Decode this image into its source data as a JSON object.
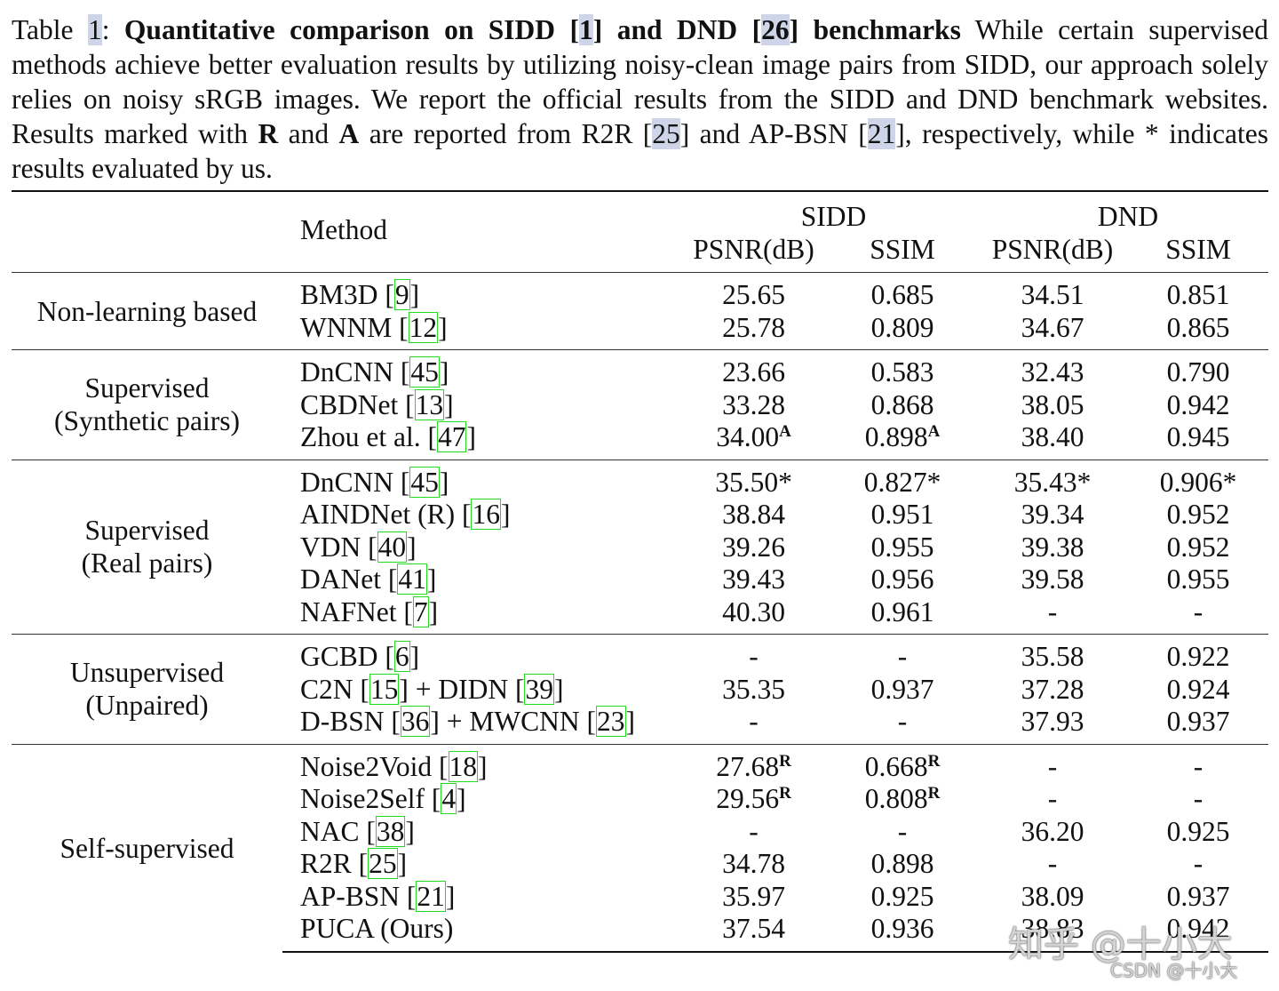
{
  "caption": [
    {
      "text": "Table "
    },
    {
      "ref": "1"
    },
    {
      "text": ": "
    },
    {
      "text": "Quantitative comparison on SIDD [",
      "bold": true
    },
    {
      "ref": "1",
      "bold": true
    },
    {
      "text": "] and DND [",
      "bold": true
    },
    {
      "ref": "26",
      "bold": true
    },
    {
      "text": "] benchmarks",
      "bold": true
    },
    {
      "text": " While certain supervised methods achieve better evaluation results by utilizing noisy-clean image pairs from SIDD, our approach solely relies on noisy sRGB images. We report the official results from the SIDD and DND benchmark websites. Results marked with "
    },
    {
      "text": "R",
      "bold": true
    },
    {
      "text": " and "
    },
    {
      "text": "A",
      "bold": true
    },
    {
      "text": " are reported from R2R ["
    },
    {
      "ref": "25"
    },
    {
      "text": "] and AP-BSN ["
    },
    {
      "ref": "21"
    },
    {
      "text": "], respectively, while * indicates results evaluated by us."
    }
  ],
  "table": {
    "header": {
      "method": "Method",
      "datasets": [
        "SIDD",
        "DND"
      ],
      "metrics": [
        "PSNR(dB)",
        "SSIM",
        "PSNR(dB)",
        "SSIM"
      ]
    },
    "groups": [
      {
        "label": [
          "Non-learning based"
        ],
        "rows": [
          {
            "method": [
              {
                "text": "BM3D ["
              },
              {
                "ref": "9"
              },
              {
                "text": "]"
              }
            ],
            "values": [
              "25.65",
              "0.685",
              "34.51",
              "0.851"
            ]
          },
          {
            "method": [
              {
                "text": "WNNM ["
              },
              {
                "ref": "12"
              },
              {
                "text": "]"
              }
            ],
            "values": [
              "25.78",
              "0.809",
              "34.67",
              "0.865"
            ]
          }
        ]
      },
      {
        "label": [
          "Supervised",
          "(Synthetic pairs)"
        ],
        "rows": [
          {
            "method": [
              {
                "text": "DnCNN ["
              },
              {
                "ref": "45"
              },
              {
                "text": "]"
              }
            ],
            "values": [
              "23.66",
              "0.583",
              "32.43",
              "0.790"
            ]
          },
          {
            "method": [
              {
                "text": "CBDNet ["
              },
              {
                "ref": "13"
              },
              {
                "text": "]"
              }
            ],
            "values": [
              "33.28",
              "0.868",
              "38.05",
              "0.942"
            ]
          },
          {
            "method": [
              {
                "text": "Zhou et al. ["
              },
              {
                "ref": "47"
              },
              {
                "text": "]"
              }
            ],
            "values": [
              {
                "text": "34.00",
                "sup": "A"
              },
              {
                "text": "0.898",
                "sup": "A"
              },
              "38.40",
              "0.945"
            ]
          }
        ]
      },
      {
        "label": [
          "Supervised",
          "(Real pairs)"
        ],
        "rows": [
          {
            "method": [
              {
                "text": "DnCNN ["
              },
              {
                "ref": "45"
              },
              {
                "text": "]"
              }
            ],
            "values": [
              "35.50*",
              "0.827*",
              "35.43*",
              "0.906*"
            ]
          },
          {
            "method": [
              {
                "text": "AINDNet (R) ["
              },
              {
                "ref": "16"
              },
              {
                "text": "]"
              }
            ],
            "values": [
              "38.84",
              "0.951",
              "39.34",
              "0.952"
            ]
          },
          {
            "method": [
              {
                "text": "VDN ["
              },
              {
                "ref": "40"
              },
              {
                "text": "]"
              }
            ],
            "values": [
              "39.26",
              "0.955",
              "39.38",
              "0.952"
            ]
          },
          {
            "method": [
              {
                "text": "DANet ["
              },
              {
                "ref": "41"
              },
              {
                "text": "]"
              }
            ],
            "values": [
              "39.43",
              "0.956",
              "39.58",
              "0.955"
            ]
          },
          {
            "method": [
              {
                "text": "NAFNet ["
              },
              {
                "ref": "7"
              },
              {
                "text": "]"
              }
            ],
            "values": [
              "40.30",
              "0.961",
              "-",
              "-"
            ]
          }
        ]
      },
      {
        "label": [
          "Unsupervised",
          "(Unpaired)"
        ],
        "rows": [
          {
            "method": [
              {
                "text": "GCBD ["
              },
              {
                "ref": "6"
              },
              {
                "text": "]"
              }
            ],
            "values": [
              "-",
              "-",
              "35.58",
              "0.922"
            ]
          },
          {
            "method": [
              {
                "text": "C2N ["
              },
              {
                "ref": "15"
              },
              {
                "text": "] + DIDN ["
              },
              {
                "ref": "39"
              },
              {
                "text": "]"
              }
            ],
            "values": [
              "35.35",
              "0.937",
              "37.28",
              "0.924"
            ]
          },
          {
            "method": [
              {
                "text": "D-BSN ["
              },
              {
                "ref": "36"
              },
              {
                "text": "] + MWCNN ["
              },
              {
                "ref": "23"
              },
              {
                "text": "]"
              }
            ],
            "values": [
              "-",
              "-",
              "37.93",
              "0.937"
            ]
          }
        ]
      },
      {
        "label": [
          "Self-supervised"
        ],
        "rows": [
          {
            "method": [
              {
                "text": "Noise2Void ["
              },
              {
                "ref": "18"
              },
              {
                "text": "]"
              }
            ],
            "values": [
              {
                "text": "27.68",
                "sup": "R"
              },
              {
                "text": "0.668",
                "sup": "R"
              },
              "-",
              "-"
            ]
          },
          {
            "method": [
              {
                "text": "Noise2Self ["
              },
              {
                "ref": "4"
              },
              {
                "text": "]"
              }
            ],
            "values": [
              {
                "text": "29.56",
                "sup": "R"
              },
              {
                "text": "0.808",
                "sup": "R"
              },
              "-",
              "-"
            ]
          },
          {
            "method": [
              {
                "text": "NAC ["
              },
              {
                "ref": "38"
              },
              {
                "text": "]"
              }
            ],
            "values": [
              "-",
              "-",
              "36.20",
              "0.925"
            ]
          },
          {
            "method": [
              {
                "text": "R2R ["
              },
              {
                "ref": "25"
              },
              {
                "text": "]"
              }
            ],
            "values": [
              "34.78",
              "0.898",
              "-",
              "-"
            ]
          },
          {
            "method": [
              {
                "text": "AP-BSN ["
              },
              {
                "ref": "21"
              },
              {
                "text": "]"
              }
            ],
            "values": [
              "35.97",
              "0.925",
              "38.09",
              "0.937"
            ]
          },
          {
            "method": [
              {
                "text": "PUCA (Ours)"
              }
            ],
            "values": [
              "37.54",
              "0.936",
              "38.83",
              "0.942"
            ],
            "bold": true
          }
        ]
      }
    ]
  },
  "watermark": [
    "知乎 @十小大",
    "CSDN @十小大"
  ]
}
